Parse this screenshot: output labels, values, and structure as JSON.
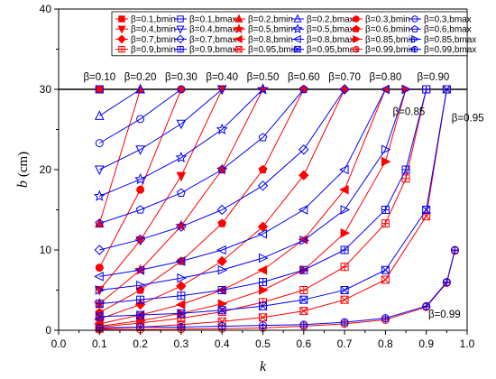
{
  "chart_data": {
    "type": "line",
    "xlabel": "k",
    "ylabel": "b",
    "ylabel_unit": "(cm)",
    "xlim": [
      0.0,
      1.0
    ],
    "ylim": [
      0,
      40
    ],
    "x_ticks": [
      "0.0",
      "0.1",
      "0.2",
      "0.3",
      "0.4",
      "0.5",
      "0.6",
      "0.7",
      "0.8",
      "0.9",
      "1.0"
    ],
    "y_ticks": [
      "0",
      "10",
      "20",
      "30",
      "40"
    ],
    "grid": false,
    "legend_position": "top",
    "reference_line_y": 30,
    "colors": {
      "bmin": "#ff0000",
      "bmax": "#0000ff",
      "axis": "#000000"
    },
    "series": [
      {
        "name": "β=0.1,bmin",
        "beta": 0.1,
        "kind": "bmin",
        "marker": "square-filled",
        "x": [
          0.1
        ],
        "y": [
          30.0
        ]
      },
      {
        "name": "β=0.1,bmax",
        "beta": 0.1,
        "kind": "bmax",
        "marker": "square-open",
        "x": [
          0.1
        ],
        "y": [
          30.0
        ]
      },
      {
        "name": "β=0.2,bmin",
        "beta": 0.2,
        "kind": "bmin",
        "marker": "triangle-up-filled",
        "x": [
          0.1,
          0.2
        ],
        "y": [
          13.3,
          30.0
        ]
      },
      {
        "name": "β=0.2,bmax",
        "beta": 0.2,
        "kind": "bmax",
        "marker": "triangle-up-open",
        "x": [
          0.1,
          0.2
        ],
        "y": [
          26.7,
          30.0
        ]
      },
      {
        "name": "β=0.3,bmin",
        "beta": 0.3,
        "kind": "bmin",
        "marker": "circle-filled",
        "x": [
          0.1,
          0.2,
          0.3
        ],
        "y": [
          7.8,
          17.5,
          30.0
        ]
      },
      {
        "name": "β=0.3,bmax",
        "beta": 0.3,
        "kind": "bmax",
        "marker": "circle-open",
        "x": [
          0.1,
          0.2,
          0.3
        ],
        "y": [
          23.3,
          26.3,
          30.0
        ]
      },
      {
        "name": "β=0.4,bmin",
        "beta": 0.4,
        "kind": "bmin",
        "marker": "triangle-down-filled",
        "x": [
          0.1,
          0.2,
          0.3,
          0.4
        ],
        "y": [
          5.0,
          11.2,
          19.2,
          30.0
        ]
      },
      {
        "name": "β=0.4,bmax",
        "beta": 0.4,
        "kind": "bmax",
        "marker": "triangle-down-open",
        "x": [
          0.1,
          0.2,
          0.3,
          0.4
        ],
        "y": [
          20.0,
          22.5,
          25.7,
          30.0
        ]
      },
      {
        "name": "β=0.5,bmin",
        "beta": 0.5,
        "kind": "bmin",
        "marker": "star-filled",
        "x": [
          0.1,
          0.2,
          0.3,
          0.4,
          0.5
        ],
        "y": [
          3.3,
          7.5,
          13.0,
          20.0,
          30.0
        ]
      },
      {
        "name": "β=0.5,bmax",
        "beta": 0.5,
        "kind": "bmax",
        "marker": "star-open",
        "x": [
          0.1,
          0.2,
          0.3,
          0.4,
          0.5
        ],
        "y": [
          16.7,
          18.8,
          21.5,
          25.0,
          30.0
        ]
      },
      {
        "name": "β=0.6,bmin",
        "beta": 0.6,
        "kind": "bmin",
        "marker": "pentagon-filled",
        "x": [
          0.1,
          0.2,
          0.3,
          0.4,
          0.5,
          0.6
        ],
        "y": [
          2.2,
          5.0,
          8.6,
          13.3,
          20.0,
          30.0
        ]
      },
      {
        "name": "β=0.6,bmax",
        "beta": 0.6,
        "kind": "bmax",
        "marker": "pentagon-open",
        "x": [
          0.1,
          0.2,
          0.3,
          0.4,
          0.5,
          0.6
        ],
        "y": [
          13.3,
          15.0,
          17.1,
          20.0,
          24.0,
          30.0
        ]
      },
      {
        "name": "β=0.7,bmin",
        "beta": 0.7,
        "kind": "bmin",
        "marker": "diamond-filled",
        "x": [
          0.1,
          0.2,
          0.3,
          0.4,
          0.5,
          0.6,
          0.7
        ],
        "y": [
          1.4,
          3.2,
          5.5,
          8.6,
          12.9,
          19.3,
          30.0
        ]
      },
      {
        "name": "β=0.7,bmax",
        "beta": 0.7,
        "kind": "bmax",
        "marker": "diamond-open",
        "x": [
          0.1,
          0.2,
          0.3,
          0.4,
          0.5,
          0.6,
          0.7
        ],
        "y": [
          10.0,
          11.3,
          12.9,
          15.0,
          18.0,
          22.5,
          30.0
        ]
      },
      {
        "name": "β=0.8,bmin",
        "beta": 0.8,
        "kind": "bmin",
        "marker": "triangle-left-filled",
        "x": [
          0.1,
          0.2,
          0.3,
          0.4,
          0.5,
          0.6,
          0.7,
          0.8
        ],
        "y": [
          0.8,
          1.9,
          3.2,
          5.0,
          7.5,
          11.3,
          17.5,
          30.0
        ]
      },
      {
        "name": "β=0.8,bmax",
        "beta": 0.8,
        "kind": "bmax",
        "marker": "triangle-left-open",
        "x": [
          0.1,
          0.2,
          0.3,
          0.4,
          0.5,
          0.6,
          0.7,
          0.8
        ],
        "y": [
          6.7,
          7.5,
          8.6,
          10.0,
          12.0,
          15.0,
          20.0,
          30.0
        ]
      },
      {
        "name": "β=0.85,bmin",
        "beta": 0.85,
        "kind": "bmin",
        "marker": "triangle-right-filled",
        "x": [
          0.1,
          0.2,
          0.3,
          0.4,
          0.5,
          0.6,
          0.7,
          0.8,
          0.85
        ],
        "y": [
          0.5,
          1.2,
          2.1,
          3.3,
          5.0,
          7.5,
          12.1,
          21.0,
          30.0
        ]
      },
      {
        "name": "β=0.85,bmax",
        "beta": 0.85,
        "kind": "bmax",
        "marker": "triangle-right-open",
        "x": [
          0.1,
          0.2,
          0.3,
          0.4,
          0.5,
          0.6,
          0.7,
          0.8,
          0.85
        ],
        "y": [
          5.0,
          5.6,
          6.5,
          7.5,
          9.0,
          11.2,
          15.0,
          22.5,
          30.0
        ]
      },
      {
        "name": "β=0.9,bmin",
        "beta": 0.9,
        "kind": "bmin",
        "marker": "square-plus-red",
        "x": [
          0.1,
          0.2,
          0.3,
          0.4,
          0.5,
          0.6,
          0.7,
          0.8,
          0.85,
          0.9
        ],
        "y": [
          0.4,
          0.9,
          1.5,
          2.3,
          3.5,
          5.0,
          7.9,
          13.3,
          18.9,
          30.0
        ]
      },
      {
        "name": "β=0.9,bmax",
        "beta": 0.9,
        "kind": "bmax",
        "marker": "square-plus-blue",
        "x": [
          0.1,
          0.2,
          0.3,
          0.4,
          0.5,
          0.6,
          0.7,
          0.8,
          0.85,
          0.9
        ],
        "y": [
          3.3,
          3.8,
          4.3,
          5.0,
          6.0,
          7.5,
          10.0,
          15.0,
          20.0,
          30.0
        ]
      },
      {
        "name": "β=0.95,bmin",
        "beta": 0.95,
        "kind": "bmin",
        "marker": "square-x-red",
        "x": [
          0.1,
          0.2,
          0.3,
          0.4,
          0.5,
          0.6,
          0.7,
          0.8,
          0.9,
          0.95
        ],
        "y": [
          0.2,
          0.4,
          0.7,
          1.1,
          1.6,
          2.4,
          3.8,
          6.3,
          14.2,
          30.0
        ]
      },
      {
        "name": "β=0.95,bmax",
        "beta": 0.95,
        "kind": "bmax",
        "marker": "square-x-blue",
        "x": [
          0.1,
          0.2,
          0.3,
          0.4,
          0.5,
          0.6,
          0.7,
          0.8,
          0.9,
          0.95
        ],
        "y": [
          1.7,
          1.9,
          2.1,
          2.5,
          3.0,
          3.8,
          5.0,
          7.5,
          15.0,
          30.0
        ]
      },
      {
        "name": "β=0.99,bmin",
        "beta": 0.99,
        "kind": "bmin",
        "marker": "circle-plus-red",
        "x": [
          0.1,
          0.2,
          0.3,
          0.4,
          0.5,
          0.6,
          0.7,
          0.8,
          0.9,
          0.95,
          0.97
        ],
        "y": [
          0.1,
          0.1,
          0.15,
          0.2,
          0.3,
          0.5,
          0.8,
          1.3,
          2.9,
          5.9,
          9.9
        ]
      },
      {
        "name": "β=0.99,bmax",
        "beta": 0.99,
        "kind": "bmax",
        "marker": "circle-plus-blue",
        "x": [
          0.1,
          0.2,
          0.3,
          0.4,
          0.5,
          0.6,
          0.7,
          0.8,
          0.9,
          0.95,
          0.97
        ],
        "y": [
          0.3,
          0.4,
          0.4,
          0.5,
          0.6,
          0.7,
          1.0,
          1.5,
          3.0,
          6.0,
          10.0
        ]
      }
    ],
    "annotations": [
      {
        "text": "β=0.10",
        "x": 0.1,
        "y": 30
      },
      {
        "text": "β=0.20",
        "x": 0.2,
        "y": 30
      },
      {
        "text": "β=0.30",
        "x": 0.3,
        "y": 30
      },
      {
        "text": "β=0.40",
        "x": 0.4,
        "y": 30
      },
      {
        "text": "β=0.50",
        "x": 0.5,
        "y": 30
      },
      {
        "text": "β=0.60",
        "x": 0.6,
        "y": 30
      },
      {
        "text": "β=0.70",
        "x": 0.7,
        "y": 30
      },
      {
        "text": "β=0.80",
        "x": 0.8,
        "y": 30
      },
      {
        "text": "β=0.85",
        "x": 0.85,
        "y": 27
      },
      {
        "text": "β=0.90",
        "x": 0.9,
        "y": 30
      },
      {
        "text": "β=0.95",
        "x": 0.95,
        "y": 26
      },
      {
        "text": "β=0.99",
        "x": 0.9,
        "y": 2
      }
    ]
  }
}
